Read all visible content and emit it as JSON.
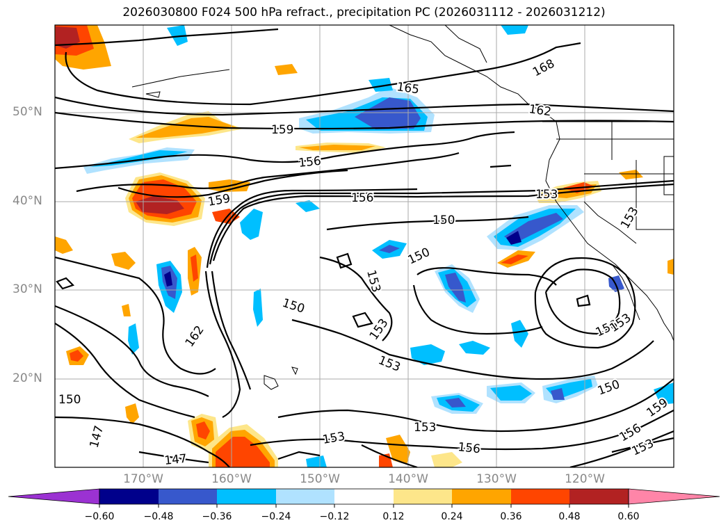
{
  "title": "2026030800 F024 500 hPa refract., precipitation PC (2026031112 - 2026031212)",
  "lat_labels": [
    "50°N",
    "40°N",
    "30°N",
    "20°N"
  ],
  "lon_labels": [
    "170°W",
    "160°W",
    "150°W",
    "140°W",
    "130°W",
    "120°W"
  ],
  "contour_labels": [
    "165",
    "168",
    "162",
    "159",
    "156",
    "156",
    "159",
    "153",
    "153",
    "150",
    "150",
    "150",
    "153",
    "153",
    "162",
    "153",
    "150",
    "153",
    "156",
    "153",
    "147",
    "147",
    "150",
    "159",
    "156",
    "153",
    "156",
    "153"
  ],
  "colorbar": {
    "ticks": [
      "−0.60",
      "−0.48",
      "−0.36",
      "−0.24",
      "−0.12",
      "0.12",
      "0.24",
      "0.36",
      "0.48",
      "0.60"
    ],
    "colors": [
      "#9b32d2",
      "#00008b",
      "#3758cc",
      "#00bfff",
      "#b0e2ff",
      "#ffffff",
      "#fde68a",
      "#ffa500",
      "#ff4500",
      "#b22222",
      "#ff85a8"
    ]
  }
}
